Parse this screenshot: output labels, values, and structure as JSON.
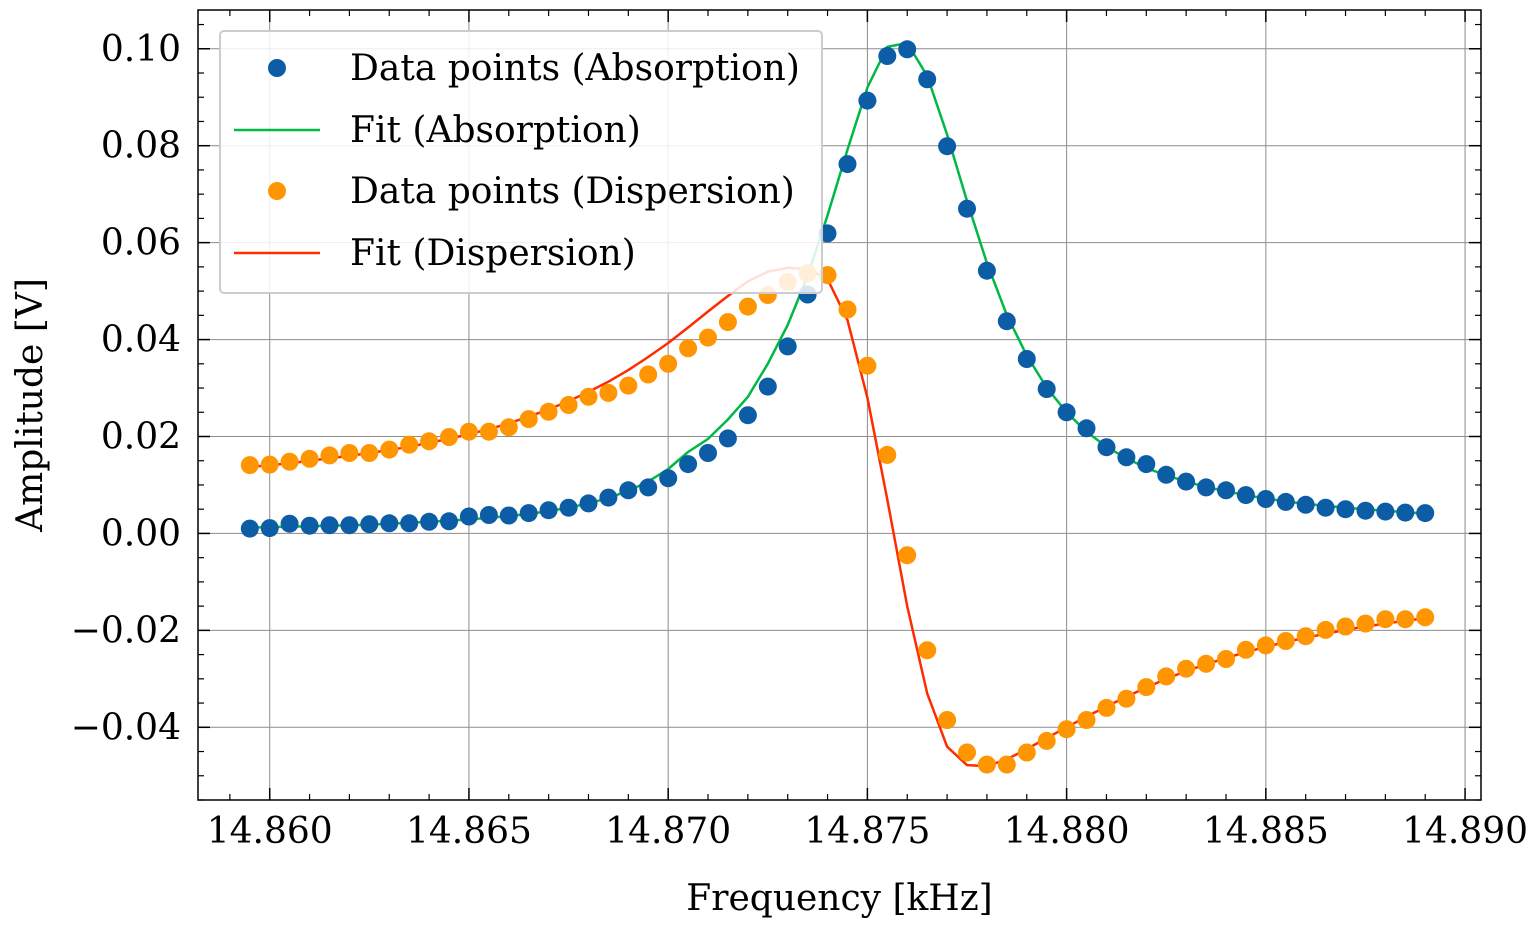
{
  "chart_data": {
    "type": "scatter",
    "xlabel": "Frequency [kHz]",
    "ylabel": "Amplitude [V]",
    "xlim": [
      14.8582,
      14.8904
    ],
    "ylim": [
      -0.055,
      0.108
    ],
    "xticks": [
      14.86,
      14.865,
      14.87,
      14.875,
      14.88,
      14.885,
      14.89
    ],
    "xtick_labels": [
      "14.860",
      "14.865",
      "14.870",
      "14.875",
      "14.880",
      "14.885",
      "14.890"
    ],
    "yticks": [
      -0.04,
      -0.02,
      0.0,
      0.02,
      0.04,
      0.06,
      0.08,
      0.1
    ],
    "ytick_labels": [
      "−0.04",
      "−0.02",
      "0.00",
      "0.02",
      "0.04",
      "0.06",
      "0.08",
      "0.10"
    ],
    "grid": true,
    "legend_position": "top-left",
    "x": [
      14.8595,
      14.86,
      14.8605,
      14.861,
      14.8615,
      14.862,
      14.8625,
      14.863,
      14.8635,
      14.864,
      14.8645,
      14.865,
      14.8655,
      14.866,
      14.8665,
      14.867,
      14.8675,
      14.868,
      14.8685,
      14.869,
      14.8695,
      14.87,
      14.8705,
      14.871,
      14.8715,
      14.872,
      14.8725,
      14.873,
      14.8735,
      14.874,
      14.8745,
      14.875,
      14.8755,
      14.876,
      14.8765,
      14.877,
      14.8775,
      14.878,
      14.8785,
      14.879,
      14.8795,
      14.88,
      14.8805,
      14.881,
      14.8815,
      14.882,
      14.8825,
      14.883,
      14.8835,
      14.884,
      14.8845,
      14.885,
      14.8855,
      14.886,
      14.8865,
      14.887,
      14.8875,
      14.888,
      14.8885,
      14.889
    ],
    "series": [
      {
        "name": "Data points (Absorption)",
        "kind": "markers",
        "color": "#0c5da5",
        "values": [
          0.001,
          0.0011,
          0.002,
          0.0016,
          0.0017,
          0.0017,
          0.0019,
          0.0021,
          0.0021,
          0.0024,
          0.0025,
          0.0035,
          0.0038,
          0.0037,
          0.0042,
          0.0048,
          0.0053,
          0.0062,
          0.0074,
          0.0089,
          0.0095,
          0.0114,
          0.0143,
          0.0166,
          0.0196,
          0.0244,
          0.0303,
          0.0386,
          0.0493,
          0.0619,
          0.0762,
          0.0893,
          0.0985,
          0.0999,
          0.0937,
          0.0799,
          0.067,
          0.0542,
          0.0438,
          0.036,
          0.0298,
          0.025,
          0.0217,
          0.0178,
          0.0157,
          0.0143,
          0.0121,
          0.0107,
          0.0095,
          0.0089,
          0.0079,
          0.0071,
          0.0065,
          0.0059,
          0.0053,
          0.005,
          0.0047,
          0.0045,
          0.0043,
          0.0042
        ]
      },
      {
        "name": "Fit (Absorption)",
        "kind": "line",
        "color": "#00b945",
        "values": [
          0.0012,
          0.0013,
          0.0014,
          0.0015,
          0.0016,
          0.0017,
          0.0018,
          0.002,
          0.0022,
          0.0024,
          0.0026,
          0.0029,
          0.0032,
          0.0036,
          0.004,
          0.0046,
          0.0053,
          0.0062,
          0.0073,
          0.0088,
          0.0107,
          0.0133,
          0.0168,
          0.0195,
          0.0235,
          0.0282,
          0.035,
          0.043,
          0.0531,
          0.0656,
          0.0792,
          0.092,
          0.1004,
          0.1012,
          0.0944,
          0.0823,
          0.0686,
          0.0558,
          0.0451,
          0.0367,
          0.0301,
          0.025,
          0.021,
          0.0179,
          0.0155,
          0.0135,
          0.012,
          0.0107,
          0.0096,
          0.0087,
          0.0079,
          0.0072,
          0.0066,
          0.0061,
          0.0057,
          0.0053,
          0.005,
          0.0047,
          0.0044,
          0.0041
        ]
      },
      {
        "name": "Data points (Dispersion)",
        "kind": "markers",
        "color": "#ff9500",
        "values": [
          0.0141,
          0.0142,
          0.0148,
          0.0154,
          0.0161,
          0.0166,
          0.0166,
          0.0173,
          0.0183,
          0.019,
          0.0199,
          0.021,
          0.021,
          0.0219,
          0.0236,
          0.0251,
          0.0265,
          0.0282,
          0.029,
          0.0305,
          0.0328,
          0.035,
          0.0382,
          0.0404,
          0.0436,
          0.0468,
          0.0492,
          0.0519,
          0.0537,
          0.0533,
          0.0462,
          0.0346,
          0.0162,
          -0.0045,
          -0.0241,
          -0.0385,
          -0.0452,
          -0.0477,
          -0.0477,
          -0.0452,
          -0.0428,
          -0.0404,
          -0.0385,
          -0.036,
          -0.0341,
          -0.0317,
          -0.0295,
          -0.0279,
          -0.0269,
          -0.0259,
          -0.024,
          -0.0231,
          -0.0222,
          -0.0212,
          -0.0199,
          -0.0192,
          -0.0186,
          -0.0177,
          -0.0177,
          -0.0173
        ]
      },
      {
        "name": "Fit (Dispersion)",
        "kind": "line",
        "color": "#ff2c00",
        "values": [
          0.0137,
          0.0141,
          0.0145,
          0.015,
          0.0155,
          0.016,
          0.0166,
          0.0172,
          0.0179,
          0.0187,
          0.0195,
          0.0205,
          0.0215,
          0.0227,
          0.0241,
          0.0256,
          0.0273,
          0.0292,
          0.0313,
          0.0337,
          0.0364,
          0.0393,
          0.0425,
          0.0458,
          0.049,
          0.052,
          0.054,
          0.0548,
          0.0545,
          0.0525,
          0.044,
          0.028,
          0.007,
          -0.015,
          -0.033,
          -0.044,
          -0.0478,
          -0.048,
          -0.0466,
          -0.0445,
          -0.0422,
          -0.04,
          -0.0378,
          -0.0357,
          -0.0337,
          -0.0318,
          -0.03,
          -0.0284,
          -0.027,
          -0.0257,
          -0.0245,
          -0.0234,
          -0.0224,
          -0.0215,
          -0.0207,
          -0.0199,
          -0.0192,
          -0.0186,
          -0.018,
          -0.0175
        ]
      }
    ]
  }
}
